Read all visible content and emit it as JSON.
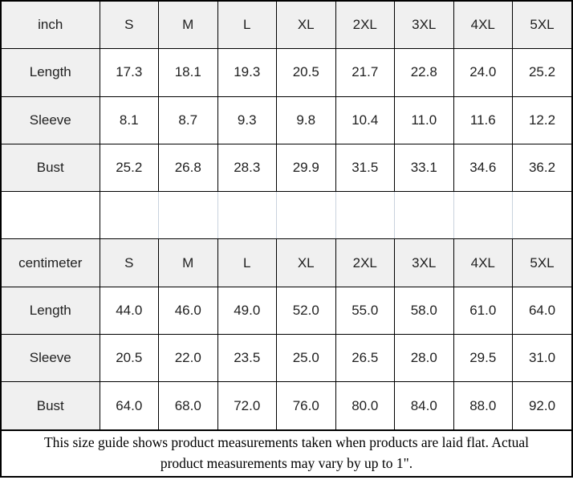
{
  "colors": {
    "header_bg": "#f0f0f0",
    "grid_border": "#000000",
    "spacer_divider": "#c9d2dd",
    "text": "#1f1f1f"
  },
  "table": {
    "rows": [
      {
        "cells": [
          "inch",
          "S",
          "M",
          "L",
          "XL",
          "2XL",
          "3XL",
          "4XL",
          "5XL"
        ]
      },
      {
        "cells": [
          "Length",
          "17.3",
          "18.1",
          "19.3",
          "20.5",
          "21.7",
          "22.8",
          "24.0",
          "25.2"
        ]
      },
      {
        "cells": [
          "Sleeve",
          "8.1",
          "8.7",
          "9.3",
          "9.8",
          "10.4",
          "11.0",
          "11.6",
          "12.2"
        ]
      },
      {
        "cells": [
          "Bust",
          "25.2",
          "26.8",
          "28.3",
          "29.9",
          "31.5",
          "33.1",
          "34.6",
          "36.2"
        ]
      },
      {
        "cells": [
          "",
          "",
          "",
          "",
          "",
          "",
          "",
          "",
          ""
        ]
      },
      {
        "cells": [
          "centimeter",
          "S",
          "M",
          "L",
          "XL",
          "2XL",
          "3XL",
          "4XL",
          "5XL"
        ]
      },
      {
        "cells": [
          "Length",
          "44.0",
          "46.0",
          "49.0",
          "52.0",
          "55.0",
          "58.0",
          "61.0",
          "64.0"
        ]
      },
      {
        "cells": [
          "Sleeve",
          "20.5",
          "22.0",
          "23.5",
          "25.0",
          "26.5",
          "28.0",
          "29.5",
          "31.0"
        ]
      },
      {
        "cells": [
          "Bust",
          "64.0",
          "68.0",
          "72.0",
          "76.0",
          "80.0",
          "84.0",
          "88.0",
          "92.0"
        ]
      }
    ]
  },
  "footer_note": "This size guide shows product measurements taken when products are laid flat. Actual product measurements may vary by up to 1\"."
}
